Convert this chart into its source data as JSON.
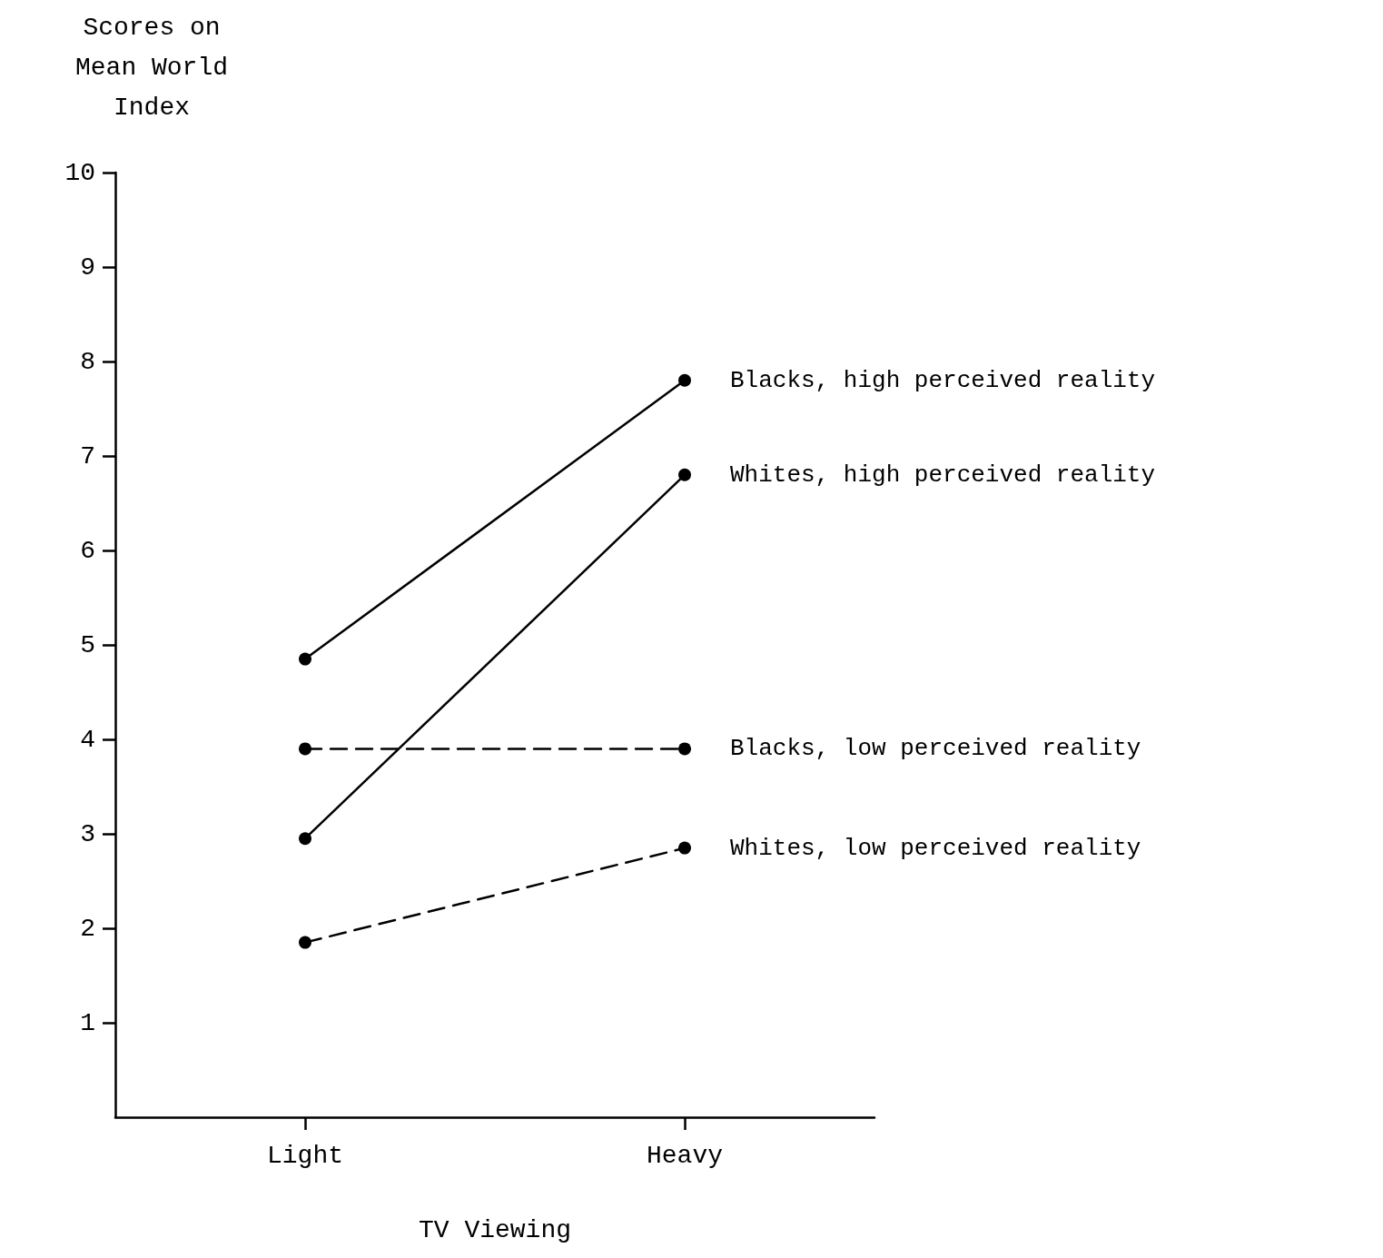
{
  "chart_data": {
    "type": "line",
    "xlabel": "TV Viewing",
    "ylabel": "Scores on\nMean World\nIndex",
    "categories": [
      "Light",
      "Heavy"
    ],
    "ylim": [
      0,
      10
    ],
    "yticks": [
      1,
      2,
      3,
      4,
      5,
      6,
      7,
      8,
      9,
      10
    ],
    "grid": false,
    "legend": false,
    "marker": "circle",
    "series": [
      {
        "name": "Blacks, high perceived reality",
        "color": "#000000",
        "line_style": "solid",
        "values": [
          4.85,
          7.8
        ]
      },
      {
        "name": "Whites, high perceived reality",
        "color": "#000000",
        "line_style": "solid",
        "values": [
          2.95,
          6.8
        ]
      },
      {
        "name": "Blacks, low perceived reality",
        "color": "#000000",
        "line_style": "dashed",
        "values": [
          3.9,
          3.9
        ]
      },
      {
        "name": "Whites, low perceived reality",
        "color": "#000000",
        "line_style": "dashed",
        "values": [
          1.85,
          2.85
        ]
      }
    ]
  }
}
